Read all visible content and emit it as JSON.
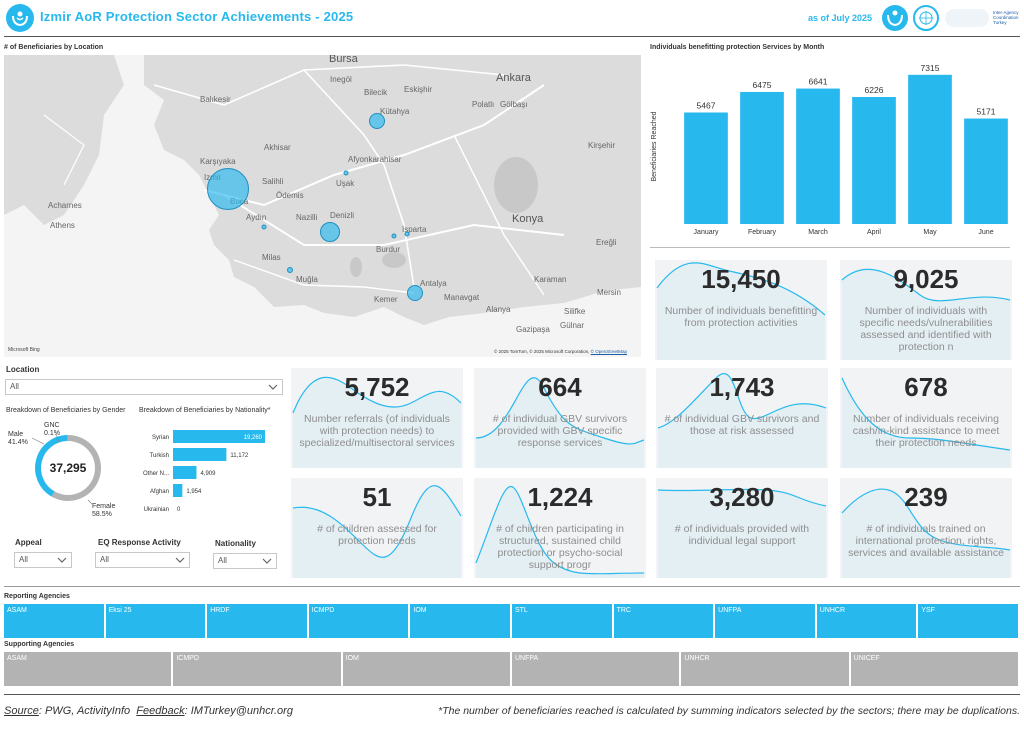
{
  "header": {
    "title": "Izmir AoR Protection Sector Achievements - 2025",
    "as_of": "as of July 2025",
    "iac_text": "Inter-Agency Coordination Turkey"
  },
  "map": {
    "title": "# of Beneficiaries by Location",
    "labels": [
      "Bursa",
      "Ankara",
      "Kütahya",
      "Eskişhir",
      "Afyonkarahisar",
      "Izmir",
      "Akhisar",
      "Ödemis",
      "Denizli",
      "Konya",
      "Antalya",
      "Ereğli",
      "Kirşehir",
      "Polatlı",
      "Gölbaşı",
      "Mersin",
      "Athens",
      "Acharnes",
      "Balıkesir",
      "Inegöl",
      "Bilecik",
      "Uşak",
      "Salihli",
      "Karaman",
      "Milas",
      "Muğla",
      "Burdur",
      "Isparta",
      "Manavgat",
      "Alanya",
      "Gazipaşa",
      "Kemer",
      "Karşıyaka",
      "Buca",
      "Nazilli",
      "Aydın",
      "Silifke",
      "Gülnar"
    ],
    "copyright": "© 2025 TomTom, © 2025 Microsoft Corporation,",
    "osm_link": "© OpenStreetMap",
    "provider": "Microsoft Bing"
  },
  "bar_title": "Individuals benefitting protection Services by Month",
  "chart_data": [
    {
      "type": "bar",
      "title": "Individuals benefitting protection Services by Month",
      "ylabel": "Beneficiaries Reached",
      "categories": [
        "January",
        "February",
        "March",
        "April",
        "May",
        "June"
      ],
      "values": [
        5467,
        6475,
        6641,
        6226,
        7315,
        5171
      ],
      "ylim": [
        0,
        7600
      ],
      "color": "#27b9ee"
    },
    {
      "type": "pie",
      "title": "Breakdown of Beneficiaries by Gender",
      "total": "37,295",
      "categories": [
        "Male",
        "Female",
        "GNC"
      ],
      "values": [
        41.4,
        58.5,
        0.1
      ],
      "value_labels": [
        "41.4%",
        "58.5%",
        "0.1%"
      ],
      "colors": [
        "#27b9ee",
        "#b3b3b3",
        "#555555"
      ]
    },
    {
      "type": "bar",
      "title": "Breakdown of Beneficiaries by Nationality*",
      "categories": [
        "Syrian",
        "Turkish",
        "Other N...",
        "Afghan",
        "Ukrainian"
      ],
      "values": [
        19260,
        11172,
        4909,
        1954,
        0
      ],
      "value_labels": [
        "19,260",
        "11,172",
        "4,909",
        "1,954",
        "0"
      ],
      "color": "#27b9ee"
    }
  ],
  "kpis": [
    {
      "value": "15,450",
      "label": "Number of individuals benefitting from protection activities"
    },
    {
      "value": "9,025",
      "label": "Number of individuals with specific needs/vulnerabilities assessed and identified with protection n"
    },
    {
      "value": "5,752",
      "label": "Number referrals (of individuals with protection needs) to specialized/multisectoral services"
    },
    {
      "value": "664",
      "label": "# of individual GBV survivors provided with GBV specific response services"
    },
    {
      "value": "1,743",
      "label": "# of individual GBV survivors and those at risk assessed"
    },
    {
      "value": "678",
      "label": "Number of individuals receiving cash/in-kind assistance to meet their protection needs"
    },
    {
      "value": "51",
      "label": "# of children assessed for protection needs"
    },
    {
      "value": "1,224",
      "label": "# of children participating in structured, sustained child protection or psycho-social support progr"
    },
    {
      "value": "3,280",
      "label": "# of individuals provided with individual legal support"
    },
    {
      "value": "239",
      "label": "# of individuals trained on international protection, rights, services and available assistance"
    }
  ],
  "filters": {
    "location": {
      "label": "Location",
      "value": "All"
    },
    "appeal": {
      "label": "Appeal",
      "value": "All"
    },
    "eq_activity": {
      "label": "EQ Response Activity",
      "value": "All"
    },
    "nationality": {
      "label": "Nationality",
      "value": "All"
    }
  },
  "gender_title": "Breakdown of Beneficiaries by Gender",
  "nationality_title": "Breakdown of Beneficiaries by Nationality*",
  "reporting": {
    "title": "Reporting Agencies",
    "items": [
      "ASAM",
      "Eksi 25",
      "HRDF",
      "ICMPD",
      "IOM",
      "STL",
      "TRC",
      "UNFPA",
      "UNHCR",
      "YSF"
    ]
  },
  "supporting": {
    "title": "Supporting Agencies",
    "items": [
      "ASAM",
      "ICMPD",
      "IOM",
      "UNFPA",
      "UNHCR",
      "UNICEF"
    ]
  },
  "footer": {
    "source_label": "Source",
    "source_text": ": PWG, ActivityInfo",
    "feedback_label": "Feedback",
    "feedback_text": ": IMTurkey@unhcr.org",
    "note": "*The number of beneficiaries reached is calculated by summing indicators selected by the sectors; there may be duplications."
  }
}
